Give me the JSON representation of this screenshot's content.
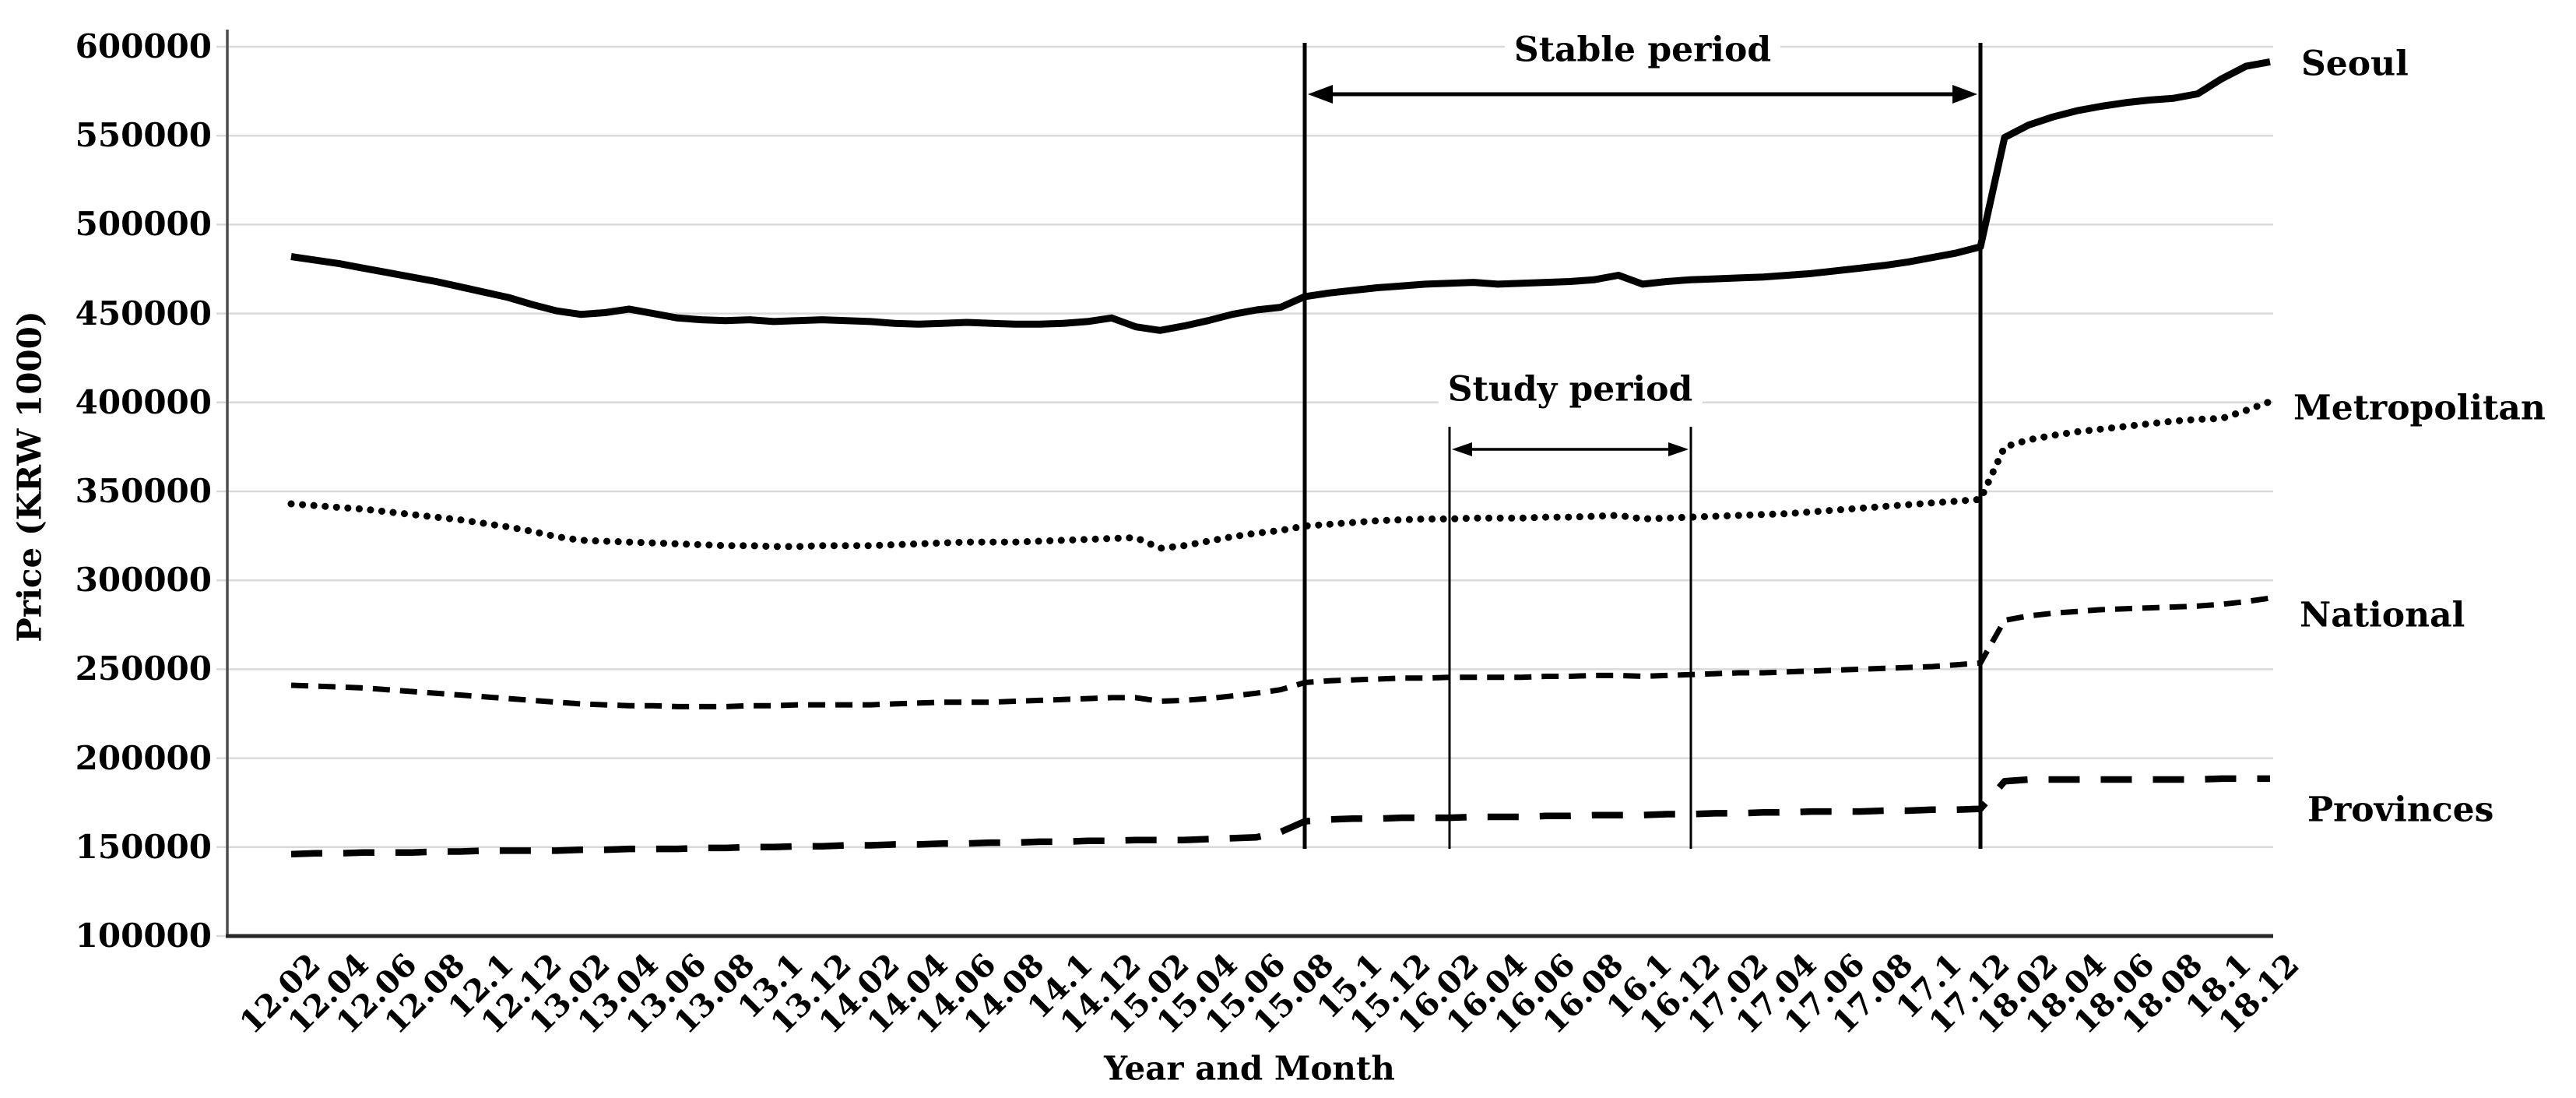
{
  "figure": {
    "kind": "line chart, black and white, housing prices Korea 2012-2018",
    "background": "#ffffff"
  },
  "axes": {
    "y_title": "Price (KRW 1000)",
    "x_title": "Year and Month",
    "y_min": 100000,
    "y_max": 600000,
    "y_step": 50000,
    "y_tick_labels": [
      "100000",
      "150000",
      "200000",
      "250000",
      "300000",
      "350000",
      "400000",
      "450000",
      "500000",
      "550000",
      "600000"
    ],
    "x_tick_every": 2,
    "x_tick_labels": [
      "12.02",
      "12.04",
      "12.06",
      "12.08",
      "12.1",
      "12.12",
      "13.02",
      "13.04",
      "13.06",
      "13.08",
      "13.1",
      "13.12",
      "14.02",
      "14.04",
      "14.06",
      "14.08",
      "14.1",
      "14.12",
      "15.02",
      "15.04",
      "15.06",
      "15.08",
      "15.1",
      "15.12",
      "16.02",
      "16.04",
      "16.06",
      "16.08",
      "16.1",
      "16.12",
      "17.02",
      "17.04",
      "17.06",
      "17.08",
      "17.1",
      "17.12",
      "18.02",
      "18.04",
      "18.06",
      "18.08",
      "18.1",
      "18.12"
    ]
  },
  "series_labels": {
    "seoul": "Seoul",
    "metropolitan": "Metropolitan",
    "national": "National",
    "provinces": "Provinces"
  },
  "annotations": {
    "stable": {
      "label": "Stable period",
      "from": "15.08",
      "to": "17.12"
    },
    "study": {
      "label": "Study period",
      "from": "16.02",
      "to": "16.12"
    }
  },
  "colors": {
    "line": "#000000",
    "grid": "#d9d9d9",
    "spine": "#4d4d4d",
    "bottom_axis": "#262626",
    "annotation": "#000000"
  },
  "chart_data": {
    "type": "line",
    "title": "",
    "xlabel": "Year and Month",
    "ylabel": "Price (KRW 1000)",
    "ylim": [
      100000,
      600000
    ],
    "grid": true,
    "legend_position": "right-margin",
    "x": [
      "12.02",
      "12.03",
      "12.04",
      "12.05",
      "12.06",
      "12.07",
      "12.08",
      "12.09",
      "12.1",
      "12.11",
      "12.12",
      "13.01",
      "13.02",
      "13.03",
      "13.04",
      "13.05",
      "13.06",
      "13.07",
      "13.08",
      "13.09",
      "13.1",
      "13.11",
      "13.12",
      "14.01",
      "14.02",
      "14.03",
      "14.04",
      "14.05",
      "14.06",
      "14.07",
      "14.08",
      "14.09",
      "14.1",
      "14.11",
      "14.12",
      "15.01",
      "15.02",
      "15.03",
      "15.04",
      "15.05",
      "15.06",
      "15.07",
      "15.08",
      "15.09",
      "15.1",
      "15.11",
      "15.12",
      "16.01",
      "16.02",
      "16.03",
      "16.04",
      "16.05",
      "16.06",
      "16.07",
      "16.08",
      "16.09",
      "16.1",
      "16.11",
      "16.12",
      "17.01",
      "17.02",
      "17.03",
      "17.04",
      "17.05",
      "17.06",
      "17.07",
      "17.08",
      "17.09",
      "17.1",
      "17.11",
      "17.12",
      "18.01",
      "18.02",
      "18.03",
      "18.04",
      "18.05",
      "18.06",
      "18.07",
      "18.08",
      "18.09",
      "18.1",
      "18.11",
      "18.12"
    ],
    "series": [
      {
        "name": "Seoul",
        "style": "solid",
        "values": [
          482000,
          480000,
          478000,
          475500,
          473000,
          470500,
          468000,
          465000,
          462000,
          459000,
          455000,
          451500,
          449500,
          450500,
          452500,
          450000,
          447500,
          446500,
          446000,
          446500,
          445500,
          446000,
          446500,
          446000,
          445500,
          444500,
          444000,
          444500,
          445000,
          444500,
          444000,
          444000,
          444500,
          445500,
          447500,
          442500,
          440500,
          443000,
          446000,
          449500,
          452000,
          453500,
          459500,
          461500,
          463000,
          464500,
          465500,
          466500,
          467000,
          467500,
          466500,
          467000,
          467500,
          468000,
          469000,
          471500,
          466500,
          468000,
          469000,
          469500,
          470000,
          470500,
          471500,
          472500,
          474000,
          475500,
          477000,
          479000,
          481500,
          484000,
          487500,
          549000,
          556000,
          560500,
          564000,
          566500,
          568500,
          570000,
          571000,
          573500,
          582000,
          589000,
          591500
        ]
      },
      {
        "name": "Metropolitan",
        "style": "dotted",
        "values": [
          343000,
          342000,
          341000,
          340000,
          338500,
          337000,
          335500,
          334000,
          332000,
          330000,
          327500,
          324500,
          322500,
          322000,
          321500,
          321000,
          320500,
          320000,
          319500,
          319500,
          319000,
          319000,
          319500,
          319500,
          319500,
          320000,
          320500,
          321000,
          321500,
          321500,
          321500,
          322000,
          322500,
          323000,
          323500,
          324000,
          318000,
          319500,
          322000,
          324500,
          326500,
          328000,
          330500,
          331500,
          332500,
          333500,
          334000,
          334500,
          334500,
          335000,
          335000,
          335000,
          335500,
          335500,
          336000,
          336500,
          334500,
          335000,
          335500,
          336000,
          336500,
          337000,
          337500,
          338500,
          339500,
          340500,
          341500,
          342500,
          343500,
          344500,
          345500,
          375000,
          379000,
          381500,
          383500,
          385000,
          386500,
          388000,
          389500,
          390500,
          391000,
          395500,
          400500
        ]
      },
      {
        "name": "National",
        "style": "dashed-short",
        "values": [
          241000,
          240500,
          240000,
          239500,
          238500,
          237500,
          236500,
          235500,
          234500,
          233500,
          232500,
          231500,
          230500,
          230000,
          229500,
          229500,
          229000,
          229000,
          229000,
          229500,
          229500,
          230000,
          230000,
          230000,
          230000,
          230500,
          231000,
          231500,
          231500,
          231500,
          232000,
          232500,
          233000,
          233500,
          234000,
          234000,
          232000,
          232500,
          233500,
          235000,
          236500,
          238500,
          242500,
          243500,
          244000,
          244500,
          245000,
          245000,
          245500,
          245500,
          245500,
          245500,
          246000,
          246000,
          246500,
          246500,
          246000,
          246500,
          247000,
          247500,
          248000,
          248000,
          248500,
          249000,
          249500,
          250000,
          250500,
          251000,
          251500,
          252500,
          253500,
          277500,
          280000,
          281500,
          282500,
          283500,
          284000,
          284500,
          285000,
          285500,
          286500,
          288000,
          290000
        ]
      },
      {
        "name": "Provinces",
        "style": "dashed-long",
        "values": [
          146000,
          146500,
          146500,
          147000,
          147000,
          147000,
          147500,
          147500,
          148000,
          148000,
          148000,
          148000,
          148500,
          148500,
          149000,
          149000,
          149000,
          149500,
          149500,
          150000,
          150000,
          150500,
          150500,
          151000,
          151000,
          151500,
          151500,
          152000,
          152000,
          152500,
          152500,
          153000,
          153000,
          153500,
          153500,
          154000,
          154000,
          154000,
          154500,
          155000,
          155500,
          158500,
          164500,
          165500,
          166000,
          166000,
          166500,
          166500,
          166500,
          167000,
          167000,
          167000,
          167500,
          167500,
          168000,
          168000,
          168000,
          168500,
          168500,
          169000,
          169000,
          169500,
          169500,
          170000,
          170000,
          170000,
          170500,
          170500,
          171000,
          171000,
          171500,
          187000,
          188000,
          188000,
          188000,
          188000,
          188000,
          188000,
          188000,
          188000,
          188500,
          188500,
          188500
        ]
      }
    ],
    "annotations": [
      {
        "text": "Stable period",
        "x_from": "15.08",
        "x_to": "17.12",
        "arrow_y_value": 573000,
        "style": "vertical lines + double-headed arrow"
      },
      {
        "text": "Study period",
        "x_from": "16.02",
        "x_to": "16.12",
        "arrow_y_value": 373500,
        "style": "vertical lines + double-headed arrow"
      }
    ]
  }
}
